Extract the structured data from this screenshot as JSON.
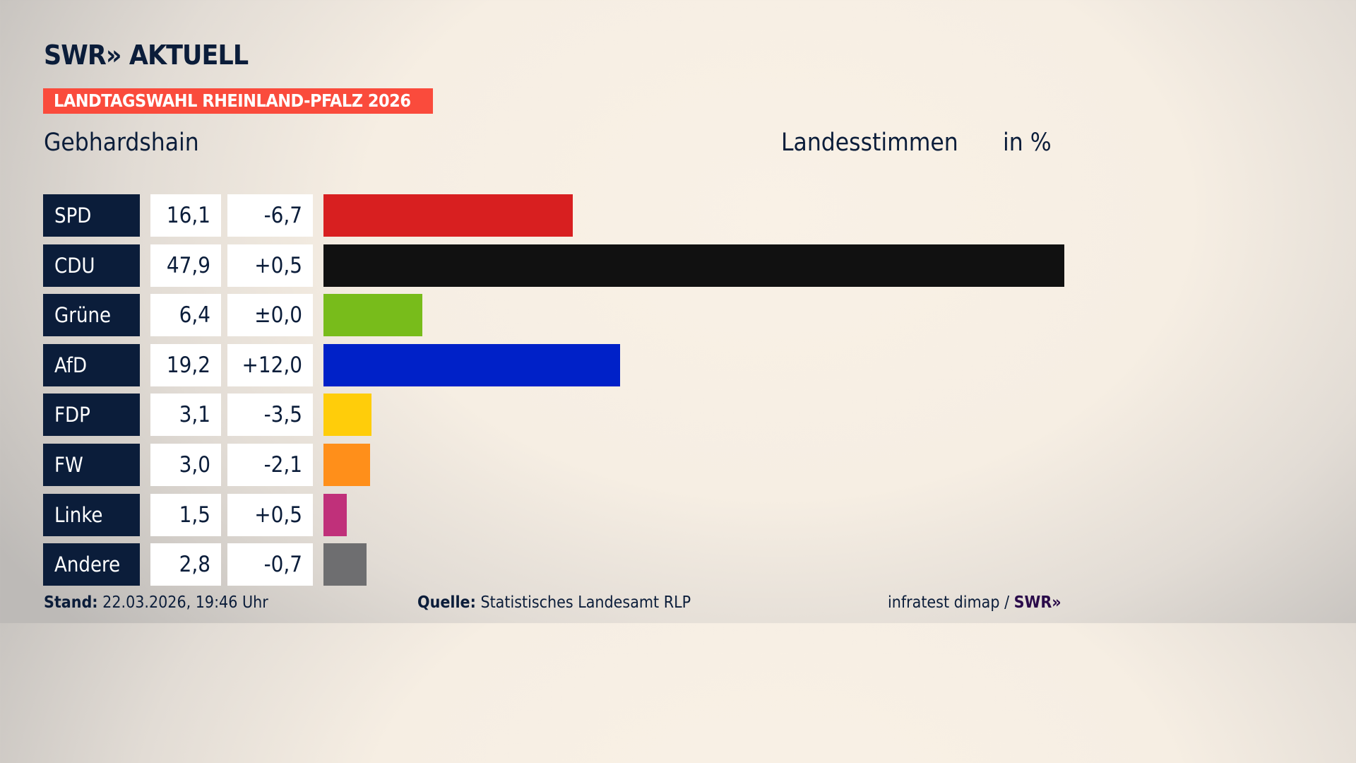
{
  "header": {
    "logo": "SWR» AKTUELL",
    "badge": "LANDTAGSWAHL RHEINLAND-PFALZ 2026",
    "location": "Gebhardshain",
    "vote_type": "Landesstimmen",
    "unit": "in %"
  },
  "chart_data": {
    "type": "bar",
    "categories": [
      "SPD",
      "CDU",
      "Grüne",
      "AfD",
      "FDP",
      "FW",
      "Linke",
      "Andere"
    ],
    "values": [
      16.1,
      47.9,
      6.4,
      19.2,
      3.1,
      3.0,
      1.5,
      2.8
    ],
    "value_labels": [
      "16,1",
      "47,9",
      "6,4",
      "19,2",
      "3,1",
      "3,0",
      "1,5",
      "2,8"
    ],
    "diff_labels": [
      "-6,7",
      "+0,5",
      "±0,0",
      "+12,0",
      "-3,5",
      "-2,1",
      "+0,5",
      "-0,7"
    ],
    "colors": [
      "#d81f20",
      "#111111",
      "#78bc1b",
      "#0021c8",
      "#ffcd0a",
      "#ff8f1a",
      "#c0307a",
      "#6e6e70"
    ],
    "orientation": "horizontal"
  },
  "footer": {
    "stand_label": "Stand:",
    "stand_value": "22.03.2026, 19:46 Uhr",
    "source_label": "Quelle:",
    "source_value": "Statistisches Landesamt RLP",
    "credit": "infratest dimap /",
    "credit_logo": "SWR»"
  }
}
